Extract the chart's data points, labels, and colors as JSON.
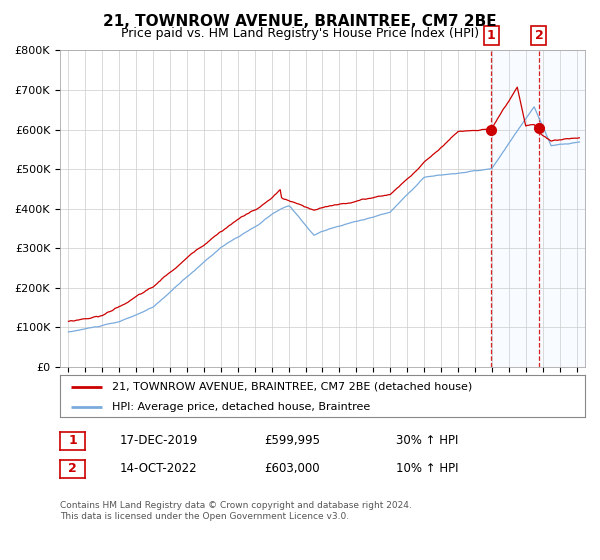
{
  "title": "21, TOWNROW AVENUE, BRAINTREE, CM7 2BE",
  "subtitle": "Price paid vs. HM Land Registry's House Price Index (HPI)",
  "legend_line1": "21, TOWNROW AVENUE, BRAINTREE, CM7 2BE (detached house)",
  "legend_line2": "HPI: Average price, detached house, Braintree",
  "annotation1_label": "1",
  "annotation1_date": "17-DEC-2019",
  "annotation1_price": "£599,995",
  "annotation1_hpi": "30% ↑ HPI",
  "annotation2_label": "2",
  "annotation2_date": "14-OCT-2022",
  "annotation2_price": "£603,000",
  "annotation2_hpi": "10% ↑ HPI",
  "footer": "Contains HM Land Registry data © Crown copyright and database right 2024.\nThis data is licensed under the Open Government Licence v3.0.",
  "sale1_year": 2019.96,
  "sale1_value": 599995,
  "sale2_year": 2022.78,
  "sale2_value": 603000,
  "red_line_color": "#cc0000",
  "blue_line_color": "#7aabdc",
  "highlight_fill": "#ddeeff",
  "highlight_start": 2019.96,
  "highlight_end": 2025.5,
  "ylim_min": 0,
  "ylim_max": 800000,
  "xlim_min": 1994.5,
  "xlim_max": 2025.5
}
